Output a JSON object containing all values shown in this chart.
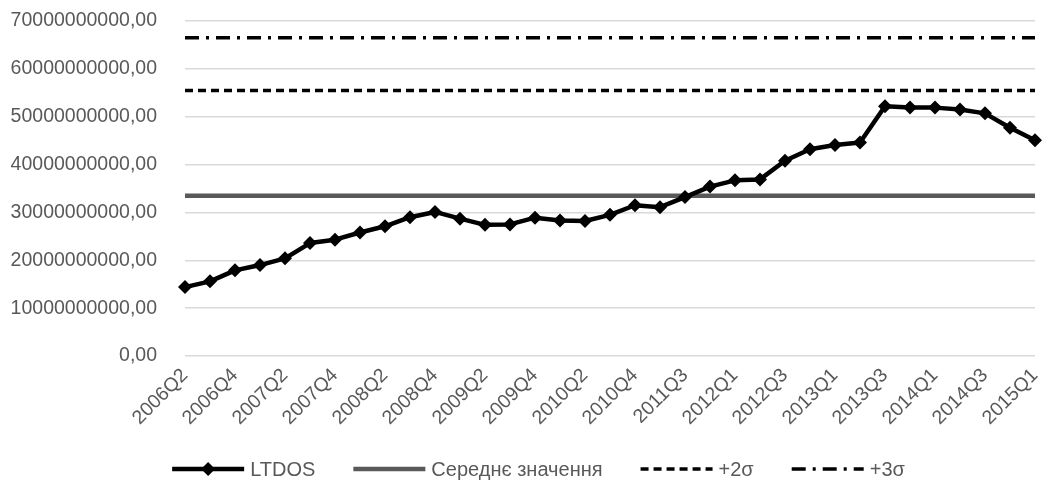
{
  "chart_data": {
    "type": "line",
    "categories": [
      "2006Q2",
      null,
      "2006Q4",
      null,
      "2007Q2",
      null,
      "2007Q4",
      null,
      "2008Q2",
      null,
      "2008Q4",
      null,
      "2009Q2",
      null,
      "2009Q4",
      null,
      "2010Q2",
      null,
      "2010Q4",
      null,
      "2011Q3",
      null,
      "2012Q1",
      null,
      "2012Q3",
      null,
      "2013Q1",
      null,
      "2013Q3",
      null,
      "2014Q1",
      null,
      "2014Q3",
      null,
      "2015Q1"
    ],
    "series": [
      {
        "name": "LTDOS",
        "color": "#000000",
        "marker": "diamond",
        "line_style": "solid",
        "values": [
          14400000000,
          15600000000,
          17900000000,
          19000000000,
          20400000000,
          23600000000,
          24300000000,
          25800000000,
          27100000000,
          29000000000,
          30100000000,
          28700000000,
          27400000000,
          27500000000,
          28900000000,
          28300000000,
          28200000000,
          29500000000,
          31500000000,
          31100000000,
          33200000000,
          35400000000,
          36700000000,
          36900000000,
          40800000000,
          43200000000,
          44100000000,
          44600000000,
          52200000000,
          51900000000,
          51900000000,
          51500000000,
          50700000000,
          47700000000,
          45100000000
        ]
      },
      {
        "name": "Середнє значення",
        "color": "#595959",
        "marker": "none",
        "line_style": "solid",
        "values": [
          33500000000,
          33500000000,
          33500000000,
          33500000000,
          33500000000,
          33500000000,
          33500000000,
          33500000000,
          33500000000,
          33500000000,
          33500000000,
          33500000000,
          33500000000,
          33500000000,
          33500000000,
          33500000000,
          33500000000,
          33500000000,
          33500000000,
          33500000000,
          33500000000,
          33500000000,
          33500000000,
          33500000000,
          33500000000,
          33500000000,
          33500000000,
          33500000000,
          33500000000,
          33500000000,
          33500000000,
          33500000000,
          33500000000,
          33500000000,
          33500000000
        ]
      },
      {
        "name": "+2σ",
        "color": "#000000",
        "marker": "none",
        "line_style": "dashed",
        "values": [
          55500000000,
          55500000000,
          55500000000,
          55500000000,
          55500000000,
          55500000000,
          55500000000,
          55500000000,
          55500000000,
          55500000000,
          55500000000,
          55500000000,
          55500000000,
          55500000000,
          55500000000,
          55500000000,
          55500000000,
          55500000000,
          55500000000,
          55500000000,
          55500000000,
          55500000000,
          55500000000,
          55500000000,
          55500000000,
          55500000000,
          55500000000,
          55500000000,
          55500000000,
          55500000000,
          55500000000,
          55500000000,
          55500000000,
          55500000000,
          55500000000
        ]
      },
      {
        "name": "+3σ",
        "color": "#000000",
        "marker": "none",
        "line_style": "dashdot",
        "values": [
          66500000000,
          66500000000,
          66500000000,
          66500000000,
          66500000000,
          66500000000,
          66500000000,
          66500000000,
          66500000000,
          66500000000,
          66500000000,
          66500000000,
          66500000000,
          66500000000,
          66500000000,
          66500000000,
          66500000000,
          66500000000,
          66500000000,
          66500000000,
          66500000000,
          66500000000,
          66500000000,
          66500000000,
          66500000000,
          66500000000,
          66500000000,
          66500000000,
          66500000000,
          66500000000,
          66500000000,
          66500000000,
          66500000000,
          66500000000,
          66500000000
        ]
      }
    ],
    "ylim": [
      0,
      70000000000
    ],
    "yticks": [
      {
        "value": 0,
        "label": "0,00"
      },
      {
        "value": 10000000000,
        "label": "10000000000,00"
      },
      {
        "value": 20000000000,
        "label": "20000000000,00"
      },
      {
        "value": 30000000000,
        "label": "30000000000,00"
      },
      {
        "value": 40000000000,
        "label": "40000000000,00"
      },
      {
        "value": 50000000000,
        "label": "50000000000,00"
      },
      {
        "value": 60000000000,
        "label": "60000000000,00"
      },
      {
        "value": 70000000000,
        "label": "70000000000,00"
      }
    ],
    "grid": "y",
    "legend": "bottom"
  }
}
